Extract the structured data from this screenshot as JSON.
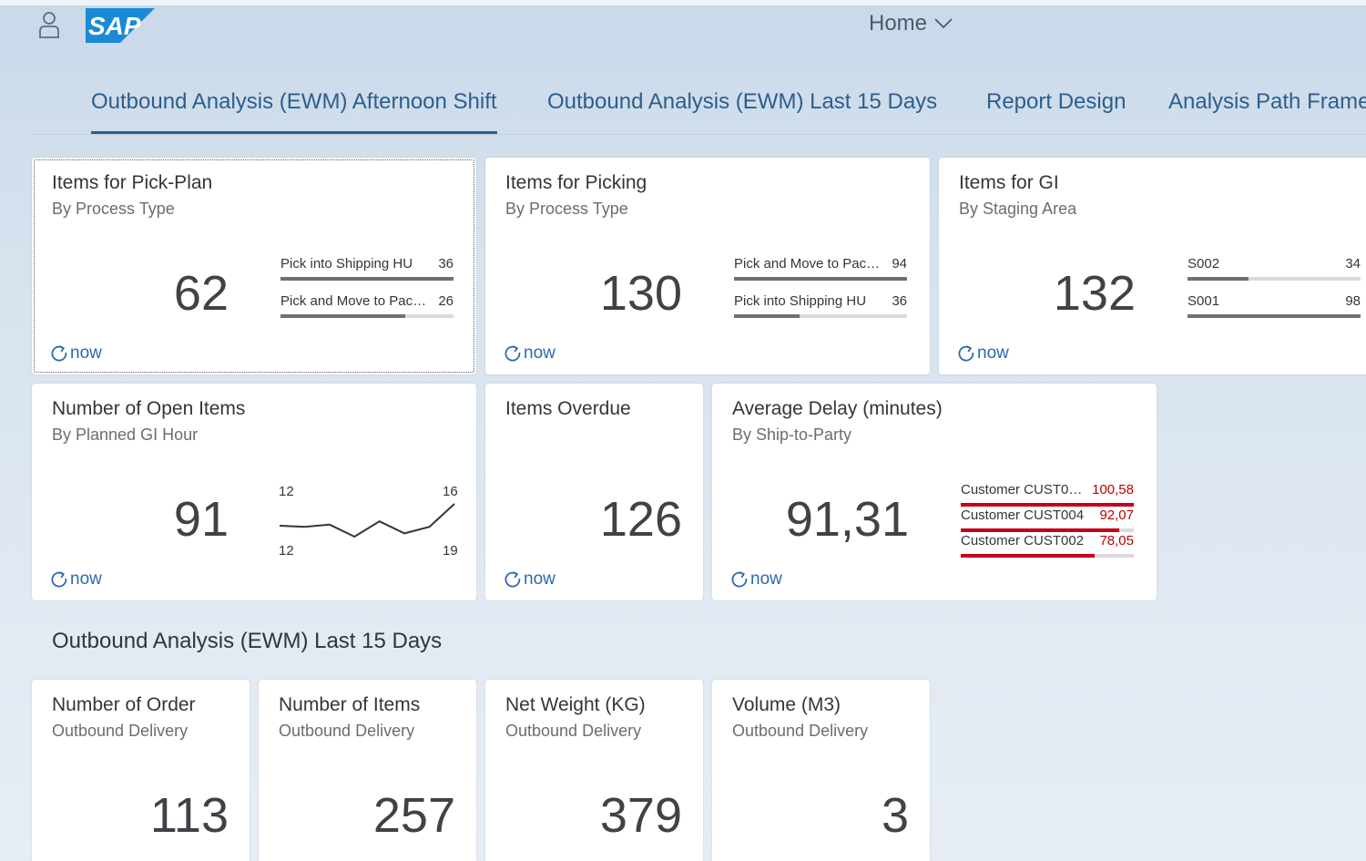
{
  "shell": {
    "home_label": "Home",
    "logo_text": "SAP"
  },
  "tabs": [
    {
      "label": "Outbound Analysis (EWM) Afternoon Shift",
      "active": true
    },
    {
      "label": "Outbound Analysis (EWM) Last 15 Days",
      "active": false
    },
    {
      "label": "Report Design",
      "active": false
    },
    {
      "label": "Analysis Path Frame",
      "active": false
    }
  ],
  "refresh_label": "now",
  "tiles": {
    "pick_plan": {
      "title": "Items for Pick-Plan",
      "subtitle": "By Process Type",
      "value": "62",
      "bars": [
        {
          "label": "Pick into Shipping HU",
          "value": "36",
          "fraction": 1.0
        },
        {
          "label": "Pick and Move to Pac…",
          "value": "26",
          "fraction": 0.72
        }
      ]
    },
    "picking": {
      "title": "Items for Picking",
      "subtitle": "By Process Type",
      "value": "130",
      "bars": [
        {
          "label": "Pick and Move to Pac…",
          "value": "94",
          "fraction": 1.0
        },
        {
          "label": "Pick into Shipping HU",
          "value": "36",
          "fraction": 0.38
        }
      ]
    },
    "gi": {
      "title": "Items for GI",
      "subtitle": "By Staging Area",
      "value": "132",
      "bars": [
        {
          "label": "S002",
          "value": "34",
          "fraction": 0.35
        },
        {
          "label": "S001",
          "value": "98",
          "fraction": 1.0
        }
      ]
    },
    "open_items": {
      "title": "Number of Open Items",
      "subtitle": "By Planned GI Hour",
      "value": "91",
      "line": {
        "top_left": "12",
        "top_right": "16",
        "bottom_left": "12",
        "bottom_right": "19",
        "points": [
          12,
          11.8,
          12.2,
          10,
          12.8,
          10.6,
          11.8,
          16
        ]
      }
    },
    "overdue": {
      "title": "Items Overdue",
      "value": "126"
    },
    "avg_delay": {
      "title": "Average Delay (minutes)",
      "subtitle": "By Ship-to-Party",
      "value": "91,31",
      "bars": [
        {
          "label": "Customer CUST0…",
          "value": "100,58",
          "fraction": 1.0
        },
        {
          "label": "Customer CUST004",
          "value": "92,07",
          "fraction": 0.915
        },
        {
          "label": "Customer CUST002",
          "value": "78,05",
          "fraction": 0.776
        }
      ]
    },
    "orders": {
      "title": "Number of Order",
      "subtitle": "Outbound Delivery",
      "value": "113"
    },
    "items": {
      "title": "Number of Items",
      "subtitle": "Outbound Delivery",
      "value": "257"
    },
    "weight": {
      "title": "Net Weight (KG)",
      "subtitle": "Outbound Delivery",
      "value": "379"
    },
    "volume": {
      "title": "Volume (M3)",
      "subtitle": "Outbound Delivery",
      "value": "3"
    }
  },
  "sections": {
    "last15_title": "Outbound Analysis (EWM) Last 15 Days"
  },
  "colors": {
    "accent": "#2d5e8c",
    "link": "#2a6bb1",
    "negative": "#c4001a",
    "neutral_bar": "#6a7178"
  }
}
